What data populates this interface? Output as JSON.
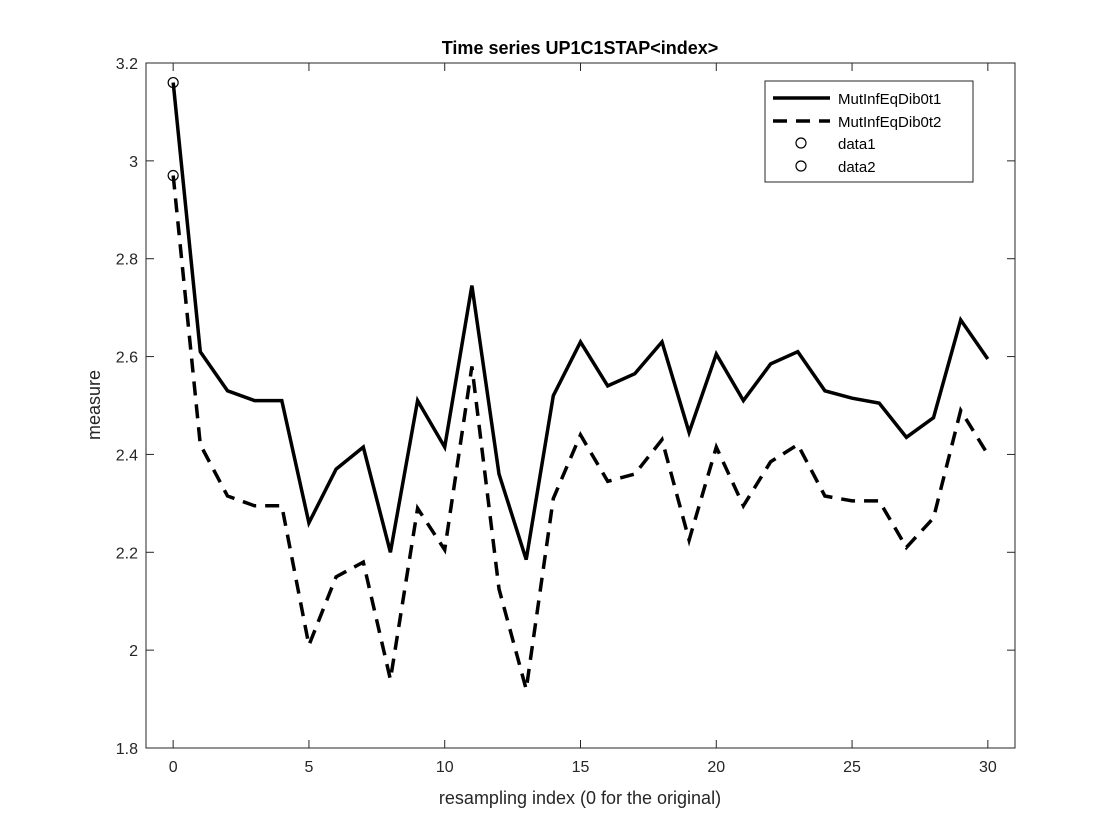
{
  "chart_data": {
    "type": "line",
    "title": "Time series UP1C1STAP<index>",
    "xlabel": "resampling index (0 for the original)",
    "ylabel": "measure",
    "xlim": [
      -1,
      31
    ],
    "ylim": [
      1.8,
      3.2
    ],
    "xticks": [
      0,
      5,
      10,
      15,
      20,
      25,
      30
    ],
    "yticks": [
      1.8,
      2,
      2.2,
      2.4,
      2.6,
      2.8,
      3,
      3.2
    ],
    "xtick_labels": [
      "0",
      "5",
      "10",
      "15",
      "20",
      "25",
      "30"
    ],
    "ytick_labels": [
      "1.8",
      "2",
      "2.2",
      "2.4",
      "2.6",
      "2.8",
      "3",
      "3.2"
    ],
    "grid": false,
    "legend_position": "top-right",
    "x": [
      0,
      1,
      2,
      3,
      4,
      5,
      6,
      7,
      8,
      9,
      10,
      11,
      12,
      13,
      14,
      15,
      16,
      17,
      18,
      19,
      20,
      21,
      22,
      23,
      24,
      25,
      26,
      27,
      28,
      29,
      30
    ],
    "series": [
      {
        "name": "MutInfEqDib0t1",
        "style": "solid",
        "values": [
          3.16,
          2.61,
          2.53,
          2.51,
          2.51,
          2.26,
          2.37,
          2.415,
          2.2,
          2.51,
          2.415,
          2.745,
          2.36,
          2.185,
          2.52,
          2.63,
          2.54,
          2.565,
          2.63,
          2.445,
          2.605,
          2.51,
          2.585,
          2.61,
          2.53,
          2.515,
          2.505,
          2.435,
          2.475,
          2.675,
          2.595
        ]
      },
      {
        "name": "MutInfEqDib0t2",
        "style": "dashed",
        "values": [
          2.97,
          2.42,
          2.315,
          2.295,
          2.295,
          2.01,
          2.15,
          2.18,
          1.94,
          2.29,
          2.205,
          2.58,
          2.125,
          1.92,
          2.31,
          2.44,
          2.345,
          2.36,
          2.43,
          2.225,
          2.415,
          2.295,
          2.385,
          2.42,
          2.315,
          2.305,
          2.305,
          2.21,
          2.27,
          2.49,
          2.4
        ]
      }
    ],
    "markers": [
      {
        "name": "data1",
        "x": 0,
        "y": 3.16
      },
      {
        "name": "data2",
        "x": 0,
        "y": 2.97
      }
    ],
    "colors": {
      "line": "#000000",
      "axis": "#262626",
      "background": "#ffffff"
    }
  }
}
